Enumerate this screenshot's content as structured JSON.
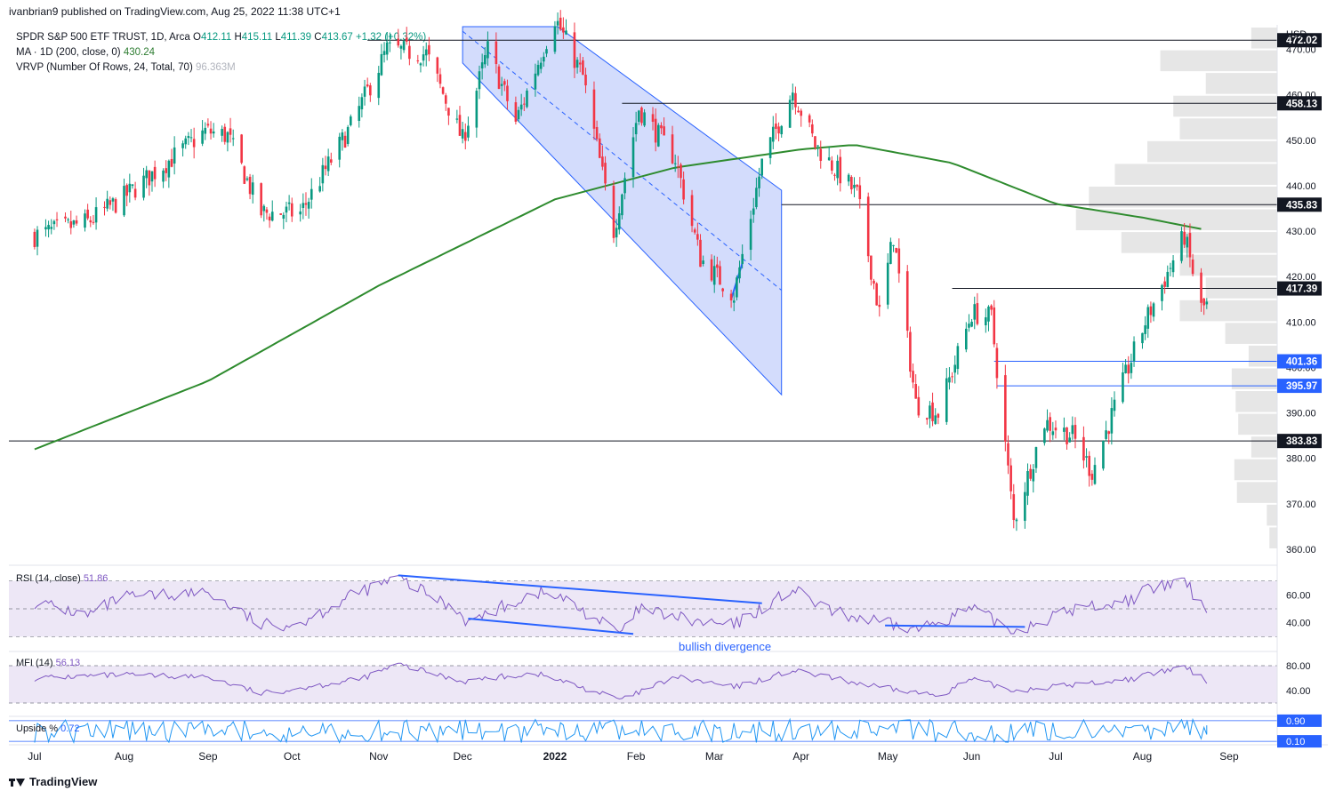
{
  "header": {
    "publisher_line": "ivanbrian9 published on TradingView.com, Aug 25, 2022 11:38 UTC+1"
  },
  "legend": {
    "symbol": "SPDR S&P 500 ETF TRUST, 1D, Arca",
    "o_label": "O",
    "o": "412.11",
    "h_label": "H",
    "h": "415.11",
    "l_label": "L",
    "l": "411.39",
    "c_label": "C",
    "c": "413.67",
    "change": "+1.32 (+0.32%)",
    "ma_label": "MA · 1D (200, close, 0)",
    "ma_value": "430.24",
    "vrvp_label": "VRVP (Number Of Rows, 24, Total, 70)",
    "vrvp_value": "96.363M"
  },
  "colors": {
    "up": "#089981",
    "down": "#f23645",
    "ma": "#2e8b2e",
    "channel": "#bbc9fb",
    "trend": "#2962ff",
    "osc": "#7e57c2",
    "osc_bg": "#ede7f6",
    "label_bg": "#131722",
    "blue_label_bg": "#2962ff",
    "profile": "#e6e6e6"
  },
  "currency": "USD",
  "price_axis": {
    "ticks": [
      "470.00",
      "460.00",
      "450.00",
      "440.00",
      "430.00",
      "420.00",
      "410.00",
      "400.00",
      "390.00",
      "380.00",
      "370.00",
      "360.00"
    ]
  },
  "level_labels": [
    {
      "text": "472.02",
      "price": 472.02,
      "kind": "black"
    },
    {
      "text": "458.13",
      "price": 458.13,
      "kind": "black"
    },
    {
      "text": "435.83",
      "price": 435.83,
      "kind": "black"
    },
    {
      "text": "417.39",
      "price": 417.39,
      "kind": "black"
    },
    {
      "text": "401.36",
      "price": 401.36,
      "kind": "blue"
    },
    {
      "text": "395.97",
      "price": 395.97,
      "kind": "blue"
    },
    {
      "text": "383.83",
      "price": 383.83,
      "kind": "black"
    }
  ],
  "time_axis": {
    "labels": [
      "Jul",
      "Aug",
      "Sep",
      "Oct",
      "Nov",
      "Dec",
      "2022",
      "Feb",
      "Mar",
      "Apr",
      "May",
      "Jun",
      "Jul",
      "Aug",
      "Sep"
    ]
  },
  "rsi": {
    "label": "RSI (14, close)",
    "value": "51.86",
    "ticks": [
      "60.00",
      "40.00"
    ],
    "annotation": "bullish divergence"
  },
  "mfi": {
    "label": "MFI (14)",
    "value": "56.13",
    "ticks": [
      "80.00",
      "40.00"
    ]
  },
  "upside": {
    "label": "Upside %",
    "value": "0.72",
    "ticks": [
      "0.90",
      "0.10"
    ]
  },
  "footer": {
    "brand": "TradingView"
  },
  "chart_data": {
    "type": "candlestick",
    "title": "SPDR S&P 500 ETF TRUST, 1D, Arca",
    "ylim": [
      360,
      478
    ],
    "x_range": [
      "2021-07",
      "2022-09"
    ],
    "close_keypoints": [
      {
        "date": "2021-07-01",
        "close": 429
      },
      {
        "date": "2021-07-20",
        "close": 432
      },
      {
        "date": "2021-08-01",
        "close": 437
      },
      {
        "date": "2021-08-31",
        "close": 452
      },
      {
        "date": "2021-09-08",
        "close": 451
      },
      {
        "date": "2021-09-20",
        "close": 434
      },
      {
        "date": "2021-10-04",
        "close": 434
      },
      {
        "date": "2021-10-22",
        "close": 453
      },
      {
        "date": "2021-11-04",
        "close": 470
      },
      {
        "date": "2021-11-18",
        "close": 469
      },
      {
        "date": "2021-12-01",
        "close": 450
      },
      {
        "date": "2021-12-10",
        "close": 470
      },
      {
        "date": "2021-12-20",
        "close": 454
      },
      {
        "date": "2022-01-03",
        "close": 477
      },
      {
        "date": "2022-01-13",
        "close": 464
      },
      {
        "date": "2022-01-24",
        "close": 430
      },
      {
        "date": "2022-02-02",
        "close": 457
      },
      {
        "date": "2022-02-15",
        "close": 446
      },
      {
        "date": "2022-02-24",
        "close": 424
      },
      {
        "date": "2022-03-08",
        "close": 416
      },
      {
        "date": "2022-03-18",
        "close": 445
      },
      {
        "date": "2022-03-29",
        "close": 461
      },
      {
        "date": "2022-04-06",
        "close": 449
      },
      {
        "date": "2022-04-21",
        "close": 438
      },
      {
        "date": "2022-04-29",
        "close": 412
      },
      {
        "date": "2022-05-04",
        "close": 429
      },
      {
        "date": "2022-05-12",
        "close": 392
      },
      {
        "date": "2022-05-20",
        "close": 390
      },
      {
        "date": "2022-06-01",
        "close": 412
      },
      {
        "date": "2022-06-08",
        "close": 411
      },
      {
        "date": "2022-06-16",
        "close": 366
      },
      {
        "date": "2022-06-27",
        "close": 388
      },
      {
        "date": "2022-07-07",
        "close": 385
      },
      {
        "date": "2022-07-14",
        "close": 377
      },
      {
        "date": "2022-07-27",
        "close": 400
      },
      {
        "date": "2022-08-02",
        "close": 410
      },
      {
        "date": "2022-08-16",
        "close": 429
      },
      {
        "date": "2022-08-22",
        "close": 413
      },
      {
        "date": "2022-08-24",
        "close": 413.67
      }
    ],
    "ma200_keypoints": [
      {
        "date": "2021-07-01",
        "value": 382
      },
      {
        "date": "2021-09-01",
        "value": 397
      },
      {
        "date": "2021-11-01",
        "value": 418
      },
      {
        "date": "2022-01-03",
        "value": 437
      },
      {
        "date": "2022-02-15",
        "value": 444
      },
      {
        "date": "2022-04-01",
        "value": 448
      },
      {
        "date": "2022-04-20",
        "value": 449
      },
      {
        "date": "2022-05-25",
        "value": 445
      },
      {
        "date": "2022-07-01",
        "value": 436
      },
      {
        "date": "2022-08-01",
        "value": 433
      },
      {
        "date": "2022-08-24",
        "value": 430.24
      }
    ],
    "horizontal_levels": [
      472.02,
      458.13,
      435.83,
      417.39,
      401.36,
      395.97,
      383.83
    ],
    "volume_profile_relative": [
      {
        "price_from": 470,
        "price_to": 475,
        "rel": 0.2
      },
      {
        "price_from": 465,
        "price_to": 470,
        "rel": 0.9
      },
      {
        "price_from": 460,
        "price_to": 465,
        "rel": 0.55
      },
      {
        "price_from": 455,
        "price_to": 460,
        "rel": 0.8
      },
      {
        "price_from": 450,
        "price_to": 455,
        "rel": 0.75
      },
      {
        "price_from": 445,
        "price_to": 450,
        "rel": 1.0
      },
      {
        "price_from": 440,
        "price_to": 445,
        "rel": 1.25
      },
      {
        "price_from": 435,
        "price_to": 440,
        "rel": 1.45
      },
      {
        "price_from": 430,
        "price_to": 435,
        "rel": 1.55
      },
      {
        "price_from": 425,
        "price_to": 430,
        "rel": 1.2
      },
      {
        "price_from": 420,
        "price_to": 425,
        "rel": 0.75
      },
      {
        "price_from": 415,
        "price_to": 420,
        "rel": 0.55
      },
      {
        "price_from": 410,
        "price_to": 415,
        "rel": 0.75
      },
      {
        "price_from": 405,
        "price_to": 410,
        "rel": 0.4
      },
      {
        "price_from": 400,
        "price_to": 405,
        "rel": 0.22
      },
      {
        "price_from": 395,
        "price_to": 400,
        "rel": 0.35
      },
      {
        "price_from": 390,
        "price_to": 395,
        "rel": 0.32
      },
      {
        "price_from": 385,
        "price_to": 390,
        "rel": 0.3
      },
      {
        "price_from": 380,
        "price_to": 385,
        "rel": 0.2
      },
      {
        "price_from": 375,
        "price_to": 380,
        "rel": 0.33
      },
      {
        "price_from": 370,
        "price_to": 375,
        "rel": 0.31
      },
      {
        "price_from": 365,
        "price_to": 370,
        "rel": 0.08
      },
      {
        "price_from": 360,
        "price_to": 365,
        "rel": 0.06
      }
    ],
    "rsi_keypoints": [
      {
        "date": "2021-07-01",
        "value": 55
      },
      {
        "date": "2021-07-20",
        "value": 45
      },
      {
        "date": "2021-08-01",
        "value": 58
      },
      {
        "date": "2021-09-01",
        "value": 62
      },
      {
        "date": "2021-09-20",
        "value": 38
      },
      {
        "date": "2021-10-04",
        "value": 40
      },
      {
        "date": "2021-10-25",
        "value": 62
      },
      {
        "date": "2021-11-08",
        "value": 72
      },
      {
        "date": "2021-11-30",
        "value": 48
      },
      {
        "date": "2021-12-03",
        "value": 40
      },
      {
        "date": "2021-12-27",
        "value": 62
      },
      {
        "date": "2022-01-05",
        "value": 58
      },
      {
        "date": "2022-01-27",
        "value": 32
      },
      {
        "date": "2022-02-02",
        "value": 50
      },
      {
        "date": "2022-02-24",
        "value": 40
      },
      {
        "date": "2022-03-08",
        "value": 38
      },
      {
        "date": "2022-03-29",
        "value": 64
      },
      {
        "date": "2022-04-11",
        "value": 48
      },
      {
        "date": "2022-04-29",
        "value": 40
      },
      {
        "date": "2022-05-12",
        "value": 35
      },
      {
        "date": "2022-06-01",
        "value": 50
      },
      {
        "date": "2022-06-16",
        "value": 34
      },
      {
        "date": "2022-07-08",
        "value": 50
      },
      {
        "date": "2022-07-27",
        "value": 56
      },
      {
        "date": "2022-08-01",
        "value": 62
      },
      {
        "date": "2022-08-16",
        "value": 70
      },
      {
        "date": "2022-08-22",
        "value": 52
      },
      {
        "date": "2022-08-24",
        "value": 51.86
      }
    ],
    "mfi_keypoints": [
      {
        "date": "2021-07-01",
        "value": 60
      },
      {
        "date": "2021-08-01",
        "value": 65
      },
      {
        "date": "2021-09-01",
        "value": 62
      },
      {
        "date": "2021-09-20",
        "value": 35
      },
      {
        "date": "2021-10-25",
        "value": 58
      },
      {
        "date": "2021-11-08",
        "value": 82
      },
      {
        "date": "2021-12-01",
        "value": 55
      },
      {
        "date": "2021-12-27",
        "value": 68
      },
      {
        "date": "2022-01-27",
        "value": 25
      },
      {
        "date": "2022-02-15",
        "value": 62
      },
      {
        "date": "2022-03-08",
        "value": 45
      },
      {
        "date": "2022-03-29",
        "value": 72
      },
      {
        "date": "2022-04-29",
        "value": 45
      },
      {
        "date": "2022-05-20",
        "value": 32
      },
      {
        "date": "2022-06-01",
        "value": 58
      },
      {
        "date": "2022-06-16",
        "value": 40
      },
      {
        "date": "2022-07-27",
        "value": 58
      },
      {
        "date": "2022-08-16",
        "value": 78
      },
      {
        "date": "2022-08-24",
        "value": 56.13
      }
    ],
    "upside_keypoints": {
      "min": 0.0,
      "max": 1.0,
      "last": 0.72
    }
  }
}
